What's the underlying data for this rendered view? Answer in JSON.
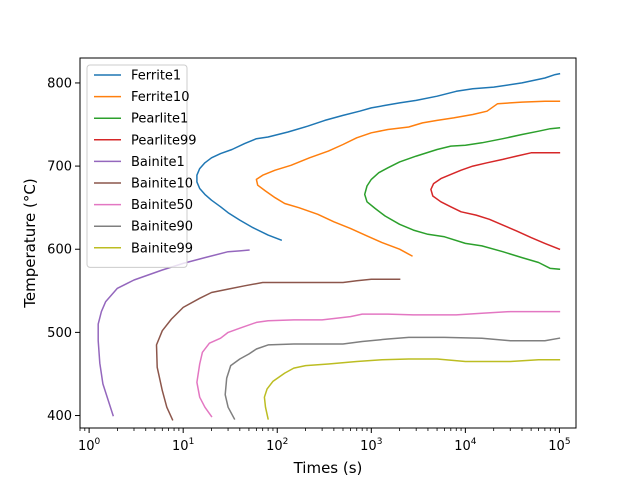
{
  "chart_data": {
    "type": "line",
    "title": "",
    "xlabel": "Times (s)",
    "ylabel": "Temperature (°C)",
    "xscale": "log",
    "xlim": [
      0.8,
      150000
    ],
    "ylim": [
      385,
      830
    ],
    "grid": false,
    "legend_position": "top-left",
    "x_ticks": [
      1,
      10,
      100,
      1000,
      10000,
      100000
    ],
    "x_tick_labels": [
      {
        "base": "10",
        "exp": "0"
      },
      {
        "base": "10",
        "exp": "1"
      },
      {
        "base": "10",
        "exp": "2"
      },
      {
        "base": "10",
        "exp": "3"
      },
      {
        "base": "10",
        "exp": "4"
      },
      {
        "base": "10",
        "exp": "5"
      }
    ],
    "y_ticks": [
      400,
      500,
      600,
      700,
      800
    ],
    "series": [
      {
        "name": "Ferrite1",
        "color": "#1f77b4",
        "points": [
          [
            110,
            611
          ],
          [
            80,
            617
          ],
          [
            55,
            626
          ],
          [
            40,
            635
          ],
          [
            30,
            644
          ],
          [
            25,
            651
          ],
          [
            20,
            659
          ],
          [
            17,
            666
          ],
          [
            15,
            673
          ],
          [
            14,
            681
          ],
          [
            14,
            689
          ],
          [
            15,
            697
          ],
          [
            17,
            704
          ],
          [
            20,
            710
          ],
          [
            25,
            715
          ],
          [
            33,
            720
          ],
          [
            45,
            727
          ],
          [
            60,
            733
          ],
          [
            80,
            735
          ],
          [
            130,
            741
          ],
          [
            210,
            748
          ],
          [
            320,
            755
          ],
          [
            500,
            761
          ],
          [
            750,
            766
          ],
          [
            1000,
            770
          ],
          [
            1400,
            773
          ],
          [
            2000,
            776
          ],
          [
            3000,
            779
          ],
          [
            5000,
            784
          ],
          [
            8000,
            790
          ],
          [
            12000,
            793
          ],
          [
            20000,
            795
          ],
          [
            40000,
            800
          ],
          [
            70000,
            806
          ],
          [
            90000,
            810
          ],
          [
            100000,
            811
          ]
        ]
      },
      {
        "name": "Ferrite10",
        "color": "#ff7f0e",
        "points": [
          [
            2700,
            592
          ],
          [
            2000,
            600
          ],
          [
            1300,
            608
          ],
          [
            900,
            616
          ],
          [
            600,
            625
          ],
          [
            400,
            633
          ],
          [
            270,
            642
          ],
          [
            170,
            650
          ],
          [
            120,
            655
          ],
          [
            95,
            662
          ],
          [
            75,
            670
          ],
          [
            62,
            677
          ],
          [
            60,
            684
          ],
          [
            70,
            689
          ],
          [
            95,
            695
          ],
          [
            140,
            701
          ],
          [
            220,
            710
          ],
          [
            350,
            718
          ],
          [
            500,
            726
          ],
          [
            700,
            734
          ],
          [
            1000,
            740
          ],
          [
            1500,
            744
          ],
          [
            2500,
            747
          ],
          [
            3500,
            752
          ],
          [
            5000,
            755
          ],
          [
            7500,
            758
          ],
          [
            12000,
            762
          ],
          [
            17000,
            766
          ],
          [
            22000,
            775
          ],
          [
            40000,
            777
          ],
          [
            70000,
            778
          ],
          [
            100000,
            778
          ]
        ]
      },
      {
        "name": "Pearlite1",
        "color": "#2ca02c",
        "points": [
          [
            100000,
            576
          ],
          [
            80000,
            577
          ],
          [
            60000,
            584
          ],
          [
            40000,
            590
          ],
          [
            25000,
            597
          ],
          [
            15000,
            604
          ],
          [
            10000,
            607
          ],
          [
            6000,
            615
          ],
          [
            4000,
            618
          ],
          [
            2800,
            623
          ],
          [
            2000,
            630
          ],
          [
            1400,
            640
          ],
          [
            1100,
            649
          ],
          [
            900,
            657
          ],
          [
            850,
            666
          ],
          [
            900,
            676
          ],
          [
            1000,
            684
          ],
          [
            1200,
            692
          ],
          [
            1500,
            698
          ],
          [
            2000,
            705
          ],
          [
            3000,
            712
          ],
          [
            5000,
            720
          ],
          [
            7000,
            724
          ],
          [
            10000,
            725
          ],
          [
            15000,
            728
          ],
          [
            25000,
            733
          ],
          [
            40000,
            738
          ],
          [
            60000,
            742
          ],
          [
            80000,
            745
          ],
          [
            100000,
            746
          ]
        ]
      },
      {
        "name": "Pearlite99",
        "color": "#d62728",
        "points": [
          [
            100000,
            600
          ],
          [
            70000,
            607
          ],
          [
            50000,
            614
          ],
          [
            35000,
            622
          ],
          [
            25000,
            629
          ],
          [
            18000,
            636
          ],
          [
            13000,
            641
          ],
          [
            9000,
            645
          ],
          [
            7000,
            651
          ],
          [
            5500,
            657
          ],
          [
            4500,
            664
          ],
          [
            4300,
            672
          ],
          [
            4600,
            679
          ],
          [
            5500,
            685
          ],
          [
            7000,
            690
          ],
          [
            9000,
            695
          ],
          [
            12000,
            700
          ],
          [
            17000,
            704
          ],
          [
            25000,
            708
          ],
          [
            35000,
            712
          ],
          [
            50000,
            716
          ],
          [
            70000,
            716
          ],
          [
            100000,
            716
          ]
        ]
      },
      {
        "name": "Bainite1",
        "color": "#9467bd",
        "points": [
          [
            1.8,
            400
          ],
          [
            1.6,
            418
          ],
          [
            1.4,
            438
          ],
          [
            1.3,
            463
          ],
          [
            1.25,
            490
          ],
          [
            1.25,
            510
          ],
          [
            1.35,
            525
          ],
          [
            1.5,
            537
          ],
          [
            2.0,
            553
          ],
          [
            3.0,
            563
          ],
          [
            6,
            575
          ],
          [
            10,
            583
          ],
          [
            17,
            590
          ],
          [
            30,
            597
          ],
          [
            40,
            598
          ],
          [
            50,
            599
          ]
        ]
      },
      {
        "name": "Bainite10",
        "color": "#8c564b",
        "points": [
          [
            7.7,
            395
          ],
          [
            6.7,
            410
          ],
          [
            6.0,
            430
          ],
          [
            5.3,
            458
          ],
          [
            5.2,
            485
          ],
          [
            6.0,
            502
          ],
          [
            7.5,
            516
          ],
          [
            10,
            530
          ],
          [
            15,
            541
          ],
          [
            20,
            548
          ],
          [
            30,
            552
          ],
          [
            45,
            556
          ],
          [
            70,
            560
          ],
          [
            100,
            560
          ],
          [
            250,
            560
          ],
          [
            500,
            560
          ],
          [
            700,
            562
          ],
          [
            1000,
            564
          ],
          [
            2000,
            564
          ]
        ]
      },
      {
        "name": "Bainite50",
        "color": "#e377c2",
        "points": [
          [
            20,
            399
          ],
          [
            17,
            410
          ],
          [
            15,
            422
          ],
          [
            14,
            440
          ],
          [
            15,
            462
          ],
          [
            16,
            476
          ],
          [
            19,
            487
          ],
          [
            25,
            493
          ],
          [
            30,
            500
          ],
          [
            40,
            505
          ],
          [
            60,
            512
          ],
          [
            80,
            514
          ],
          [
            150,
            515
          ],
          [
            300,
            515
          ],
          [
            600,
            519
          ],
          [
            800,
            522
          ],
          [
            1500,
            522
          ],
          [
            2800,
            521
          ],
          [
            8000,
            521
          ],
          [
            15000,
            523
          ],
          [
            30000,
            525
          ],
          [
            60000,
            525
          ],
          [
            100000,
            525
          ]
        ]
      },
      {
        "name": "Bainite90",
        "color": "#7f7f7f",
        "points": [
          [
            35,
            396
          ],
          [
            30,
            410
          ],
          [
            28,
            425
          ],
          [
            29,
            445
          ],
          [
            32,
            460
          ],
          [
            40,
            468
          ],
          [
            50,
            474
          ],
          [
            60,
            480
          ],
          [
            80,
            485
          ],
          [
            150,
            486
          ],
          [
            300,
            486
          ],
          [
            500,
            486
          ],
          [
            800,
            489
          ],
          [
            1500,
            492
          ],
          [
            2500,
            494
          ],
          [
            6000,
            494
          ],
          [
            15000,
            493
          ],
          [
            30000,
            490
          ],
          [
            70000,
            490
          ],
          [
            100000,
            493
          ]
        ]
      },
      {
        "name": "Bainite99",
        "color": "#bcbd22",
        "points": [
          [
            80,
            396
          ],
          [
            75,
            410
          ],
          [
            73,
            422
          ],
          [
            78,
            432
          ],
          [
            90,
            441
          ],
          [
            120,
            451
          ],
          [
            150,
            457
          ],
          [
            200,
            460
          ],
          [
            350,
            462
          ],
          [
            700,
            465
          ],
          [
            1300,
            467
          ],
          [
            2500,
            468
          ],
          [
            5000,
            468
          ],
          [
            10000,
            465
          ],
          [
            30000,
            465
          ],
          [
            60000,
            467
          ],
          [
            100000,
            467
          ]
        ]
      }
    ]
  }
}
